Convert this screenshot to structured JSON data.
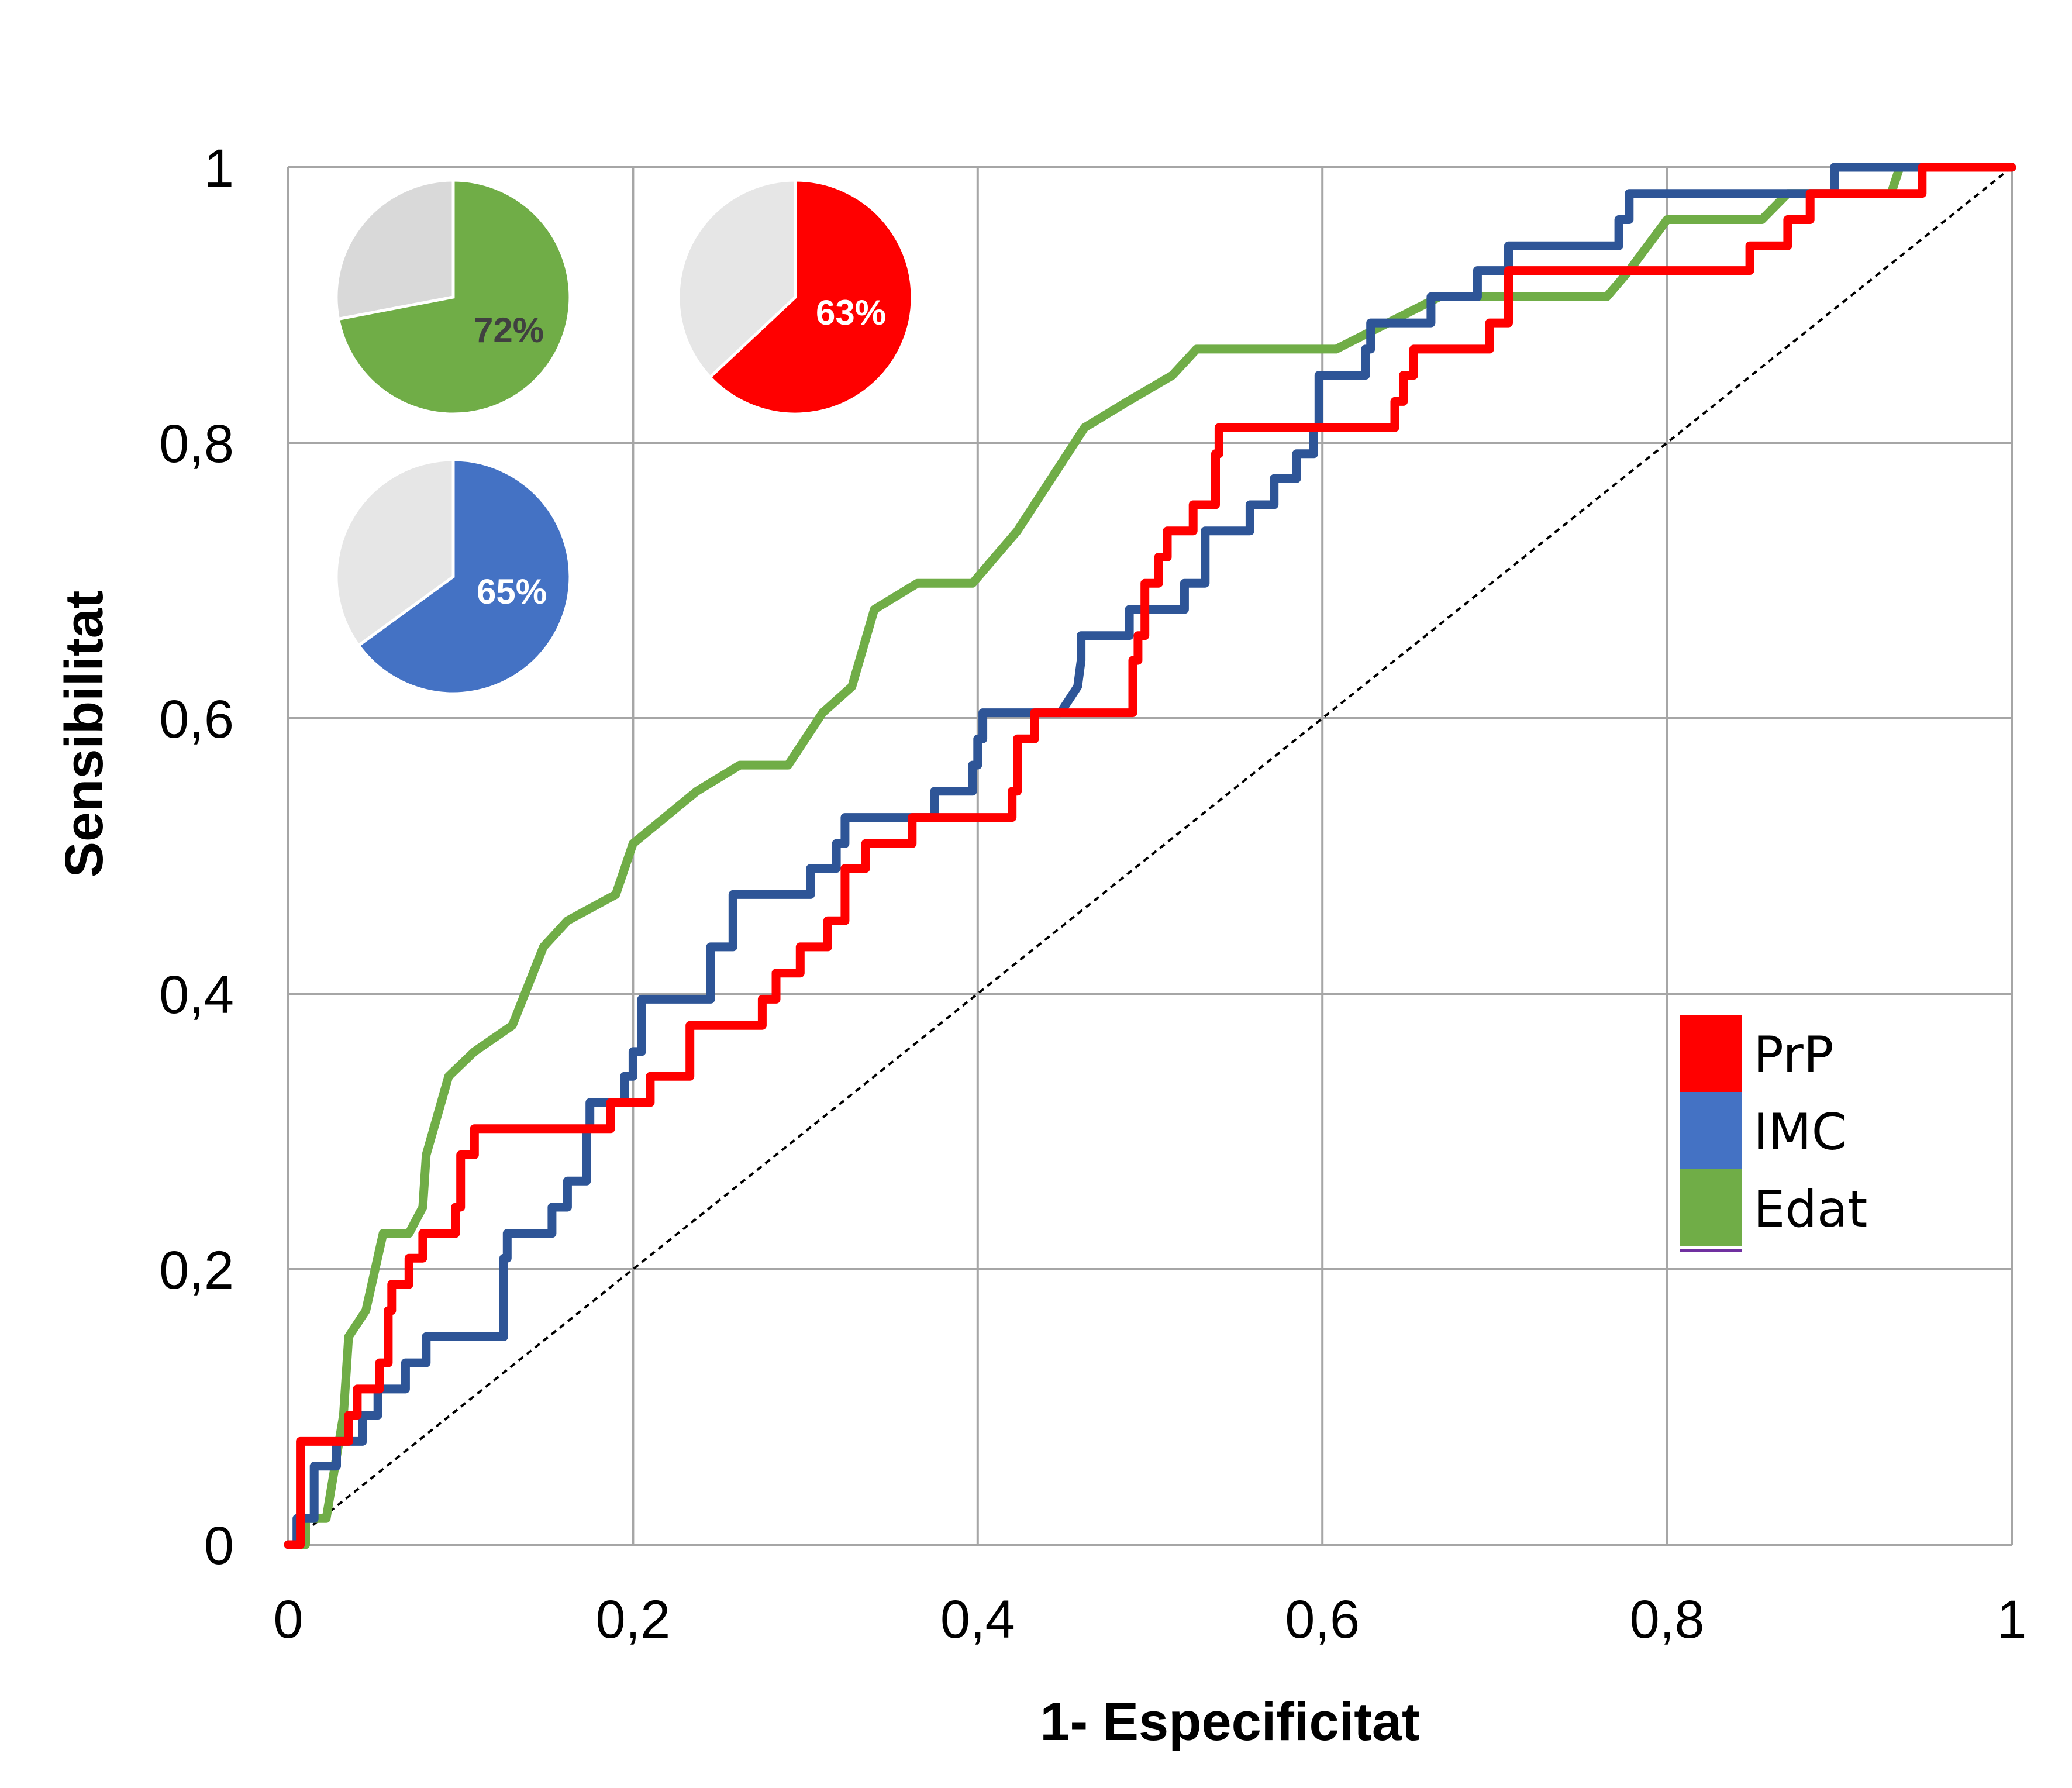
{
  "chart_data": {
    "type": "line",
    "xlabel": "1- Especificitat",
    "ylabel": "Sensibilitat",
    "xlim": [
      0,
      1
    ],
    "ylim": [
      0,
      1
    ],
    "grid": true,
    "x_ticks": [
      "0",
      "0,2",
      "0,4",
      "0,6",
      "0,8",
      "1"
    ],
    "y_ticks": [
      "0",
      "0,2",
      "0,4",
      "0,6",
      "0,8",
      "1"
    ],
    "legend_position": "bottom-right",
    "reference_line": {
      "from": [
        0,
        0
      ],
      "to": [
        1,
        1
      ],
      "style": "dashed",
      "color": "#000000"
    },
    "series": [
      {
        "name": "PrP",
        "color": "#ff0000",
        "points": [
          [
            0,
            0
          ],
          [
            0.007,
            0
          ],
          [
            0.007,
            0.075
          ],
          [
            0.035,
            0.075
          ],
          [
            0.035,
            0.094
          ],
          [
            0.04,
            0.094
          ],
          [
            0.04,
            0.113
          ],
          [
            0.05,
            0.113
          ],
          [
            0.05,
            0.113
          ],
          [
            0.053,
            0.113
          ],
          [
            0.053,
            0.132
          ],
          [
            0.058,
            0.132
          ],
          [
            0.058,
            0.17
          ],
          [
            0.06,
            0.17
          ],
          [
            0.06,
            0.189
          ],
          [
            0.07,
            0.189
          ],
          [
            0.07,
            0.208
          ],
          [
            0.078,
            0.208
          ],
          [
            0.078,
            0.226
          ],
          [
            0.097,
            0.226
          ],
          [
            0.097,
            0.245
          ],
          [
            0.1,
            0.245
          ],
          [
            0.1,
            0.283
          ],
          [
            0.108,
            0.283
          ],
          [
            0.108,
            0.302
          ],
          [
            0.187,
            0.302
          ],
          [
            0.187,
            0.321
          ],
          [
            0.21,
            0.321
          ],
          [
            0.21,
            0.34
          ],
          [
            0.233,
            0.34
          ],
          [
            0.233,
            0.377
          ],
          [
            0.275,
            0.377
          ],
          [
            0.275,
            0.396
          ],
          [
            0.283,
            0.396
          ],
          [
            0.283,
            0.415
          ],
          [
            0.297,
            0.415
          ],
          [
            0.297,
            0.434
          ],
          [
            0.313,
            0.434
          ],
          [
            0.313,
            0.453
          ],
          [
            0.323,
            0.453
          ],
          [
            0.323,
            0.491
          ],
          [
            0.335,
            0.491
          ],
          [
            0.335,
            0.509
          ],
          [
            0.362,
            0.509
          ],
          [
            0.362,
            0.528
          ],
          [
            0.42,
            0.528
          ],
          [
            0.42,
            0.547
          ],
          [
            0.423,
            0.547
          ],
          [
            0.423,
            0.585
          ],
          [
            0.433,
            0.585
          ],
          [
            0.433,
            0.604
          ],
          [
            0.49,
            0.604
          ],
          [
            0.49,
            0.642
          ],
          [
            0.493,
            0.642
          ],
          [
            0.493,
            0.66
          ],
          [
            0.497,
            0.66
          ],
          [
            0.497,
            0.698
          ],
          [
            0.505,
            0.698
          ],
          [
            0.505,
            0.717
          ],
          [
            0.51,
            0.717
          ],
          [
            0.51,
            0.736
          ],
          [
            0.525,
            0.736
          ],
          [
            0.525,
            0.755
          ],
          [
            0.538,
            0.755
          ],
          [
            0.538,
            0.792
          ],
          [
            0.54,
            0.792
          ],
          [
            0.54,
            0.811
          ],
          [
            0.642,
            0.811
          ],
          [
            0.642,
            0.83
          ],
          [
            0.647,
            0.83
          ],
          [
            0.647,
            0.849
          ],
          [
            0.653,
            0.849
          ],
          [
            0.653,
            0.868
          ],
          [
            0.697,
            0.868
          ],
          [
            0.697,
            0.887
          ],
          [
            0.708,
            0.887
          ],
          [
            0.708,
            0.925
          ],
          [
            0.848,
            0.925
          ],
          [
            0.848,
            0.943
          ],
          [
            0.87,
            0.943
          ],
          [
            0.87,
            0.962
          ],
          [
            0.883,
            0.962
          ],
          [
            0.883,
            0.981
          ],
          [
            0.948,
            0.981
          ],
          [
            0.948,
            1
          ],
          [
            1,
            1
          ]
        ]
      },
      {
        "name": "IMC",
        "color": "#2e5597",
        "points": [
          [
            0,
            0
          ],
          [
            0.005,
            0
          ],
          [
            0.005,
            0.019
          ],
          [
            0.015,
            0.019
          ],
          [
            0.015,
            0.057
          ],
          [
            0.028,
            0.057
          ],
          [
            0.028,
            0.075
          ],
          [
            0.043,
            0.075
          ],
          [
            0.043,
            0.094
          ],
          [
            0.052,
            0.094
          ],
          [
            0.052,
            0.113
          ],
          [
            0.068,
            0.113
          ],
          [
            0.068,
            0.132
          ],
          [
            0.08,
            0.132
          ],
          [
            0.08,
            0.151
          ],
          [
            0.125,
            0.151
          ],
          [
            0.125,
            0.208
          ],
          [
            0.127,
            0.208
          ],
          [
            0.127,
            0.226
          ],
          [
            0.153,
            0.226
          ],
          [
            0.153,
            0.245
          ],
          [
            0.162,
            0.245
          ],
          [
            0.162,
            0.264
          ],
          [
            0.173,
            0.264
          ],
          [
            0.173,
            0.302
          ],
          [
            0.175,
            0.302
          ],
          [
            0.175,
            0.321
          ],
          [
            0.195,
            0.321
          ],
          [
            0.195,
            0.34
          ],
          [
            0.2,
            0.34
          ],
          [
            0.2,
            0.358
          ],
          [
            0.205,
            0.358
          ],
          [
            0.205,
            0.396
          ],
          [
            0.245,
            0.396
          ],
          [
            0.245,
            0.434
          ],
          [
            0.258,
            0.434
          ],
          [
            0.258,
            0.472
          ],
          [
            0.303,
            0.472
          ],
          [
            0.303,
            0.491
          ],
          [
            0.318,
            0.491
          ],
          [
            0.318,
            0.509
          ],
          [
            0.323,
            0.509
          ],
          [
            0.323,
            0.528
          ],
          [
            0.375,
            0.528
          ],
          [
            0.375,
            0.547
          ],
          [
            0.397,
            0.547
          ],
          [
            0.397,
            0.566
          ],
          [
            0.4,
            0.566
          ],
          [
            0.4,
            0.585
          ],
          [
            0.403,
            0.585
          ],
          [
            0.403,
            0.604
          ],
          [
            0.448,
            0.604
          ],
          [
            0.458,
            0.623
          ],
          [
            0.46,
            0.642
          ],
          [
            0.46,
            0.66
          ],
          [
            0.488,
            0.66
          ],
          [
            0.488,
            0.679
          ],
          [
            0.52,
            0.679
          ],
          [
            0.52,
            0.698
          ],
          [
            0.532,
            0.698
          ],
          [
            0.532,
            0.736
          ],
          [
            0.558,
            0.736
          ],
          [
            0.558,
            0.755
          ],
          [
            0.572,
            0.755
          ],
          [
            0.572,
            0.774
          ],
          [
            0.585,
            0.774
          ],
          [
            0.585,
            0.792
          ],
          [
            0.595,
            0.792
          ],
          [
            0.595,
            0.811
          ],
          [
            0.598,
            0.811
          ],
          [
            0.598,
            0.849
          ],
          [
            0.625,
            0.849
          ],
          [
            0.625,
            0.868
          ],
          [
            0.628,
            0.868
          ],
          [
            0.628,
            0.887
          ],
          [
            0.663,
            0.887
          ],
          [
            0.663,
            0.906
          ],
          [
            0.69,
            0.906
          ],
          [
            0.69,
            0.925
          ],
          [
            0.708,
            0.925
          ],
          [
            0.708,
            0.943
          ],
          [
            0.772,
            0.943
          ],
          [
            0.772,
            0.962
          ],
          [
            0.778,
            0.962
          ],
          [
            0.778,
            0.981
          ],
          [
            0.897,
            0.981
          ],
          [
            0.897,
            1
          ],
          [
            1,
            1
          ]
        ]
      },
      {
        "name": "Edat",
        "color": "#70ad47",
        "points": [
          [
            0,
            0
          ],
          [
            0.01,
            0
          ],
          [
            0.01,
            0.019
          ],
          [
            0.022,
            0.019
          ],
          [
            0.032,
            0.094
          ],
          [
            0.035,
            0.151
          ],
          [
            0.045,
            0.17
          ],
          [
            0.055,
            0.226
          ],
          [
            0.07,
            0.226
          ],
          [
            0.078,
            0.245
          ],
          [
            0.08,
            0.283
          ],
          [
            0.093,
            0.34
          ],
          [
            0.108,
            0.358
          ],
          [
            0.13,
            0.377
          ],
          [
            0.148,
            0.434
          ],
          [
            0.162,
            0.453
          ],
          [
            0.19,
            0.472
          ],
          [
            0.2,
            0.509
          ],
          [
            0.237,
            0.547
          ],
          [
            0.262,
            0.566
          ],
          [
            0.29,
            0.566
          ],
          [
            0.31,
            0.604
          ],
          [
            0.327,
            0.623
          ],
          [
            0.34,
            0.679
          ],
          [
            0.365,
            0.698
          ],
          [
            0.397,
            0.698
          ],
          [
            0.423,
            0.736
          ],
          [
            0.462,
            0.811
          ],
          [
            0.487,
            0.83
          ],
          [
            0.513,
            0.849
          ],
          [
            0.527,
            0.868
          ],
          [
            0.608,
            0.868
          ],
          [
            0.668,
            0.906
          ],
          [
            0.765,
            0.906
          ],
          [
            0.778,
            0.925
          ],
          [
            0.8,
            0.962
          ],
          [
            0.855,
            0.962
          ],
          [
            0.87,
            0.981
          ],
          [
            0.93,
            0.981
          ],
          [
            0.935,
            1
          ],
          [
            1,
            1
          ]
        ]
      }
    ],
    "pies": [
      {
        "label": "72%",
        "value": 72,
        "color": "#70ad47",
        "rest_color": "#d9d9d9",
        "label_color": "#404040"
      },
      {
        "label": "63%",
        "value": 63,
        "color": "#ff0000",
        "rest_color": "#e6e6e6",
        "label_color": "#ffffff"
      },
      {
        "label": "65%",
        "value": 65,
        "color": "#4472c4",
        "rest_color": "#e6e6e6",
        "label_color": "#ffffff"
      }
    ],
    "legend": [
      {
        "label": "PrP",
        "color": "#ff0000"
      },
      {
        "label": "IMC",
        "color": "#4472c4"
      },
      {
        "label": "Edat",
        "color": "#70ad47"
      }
    ]
  }
}
